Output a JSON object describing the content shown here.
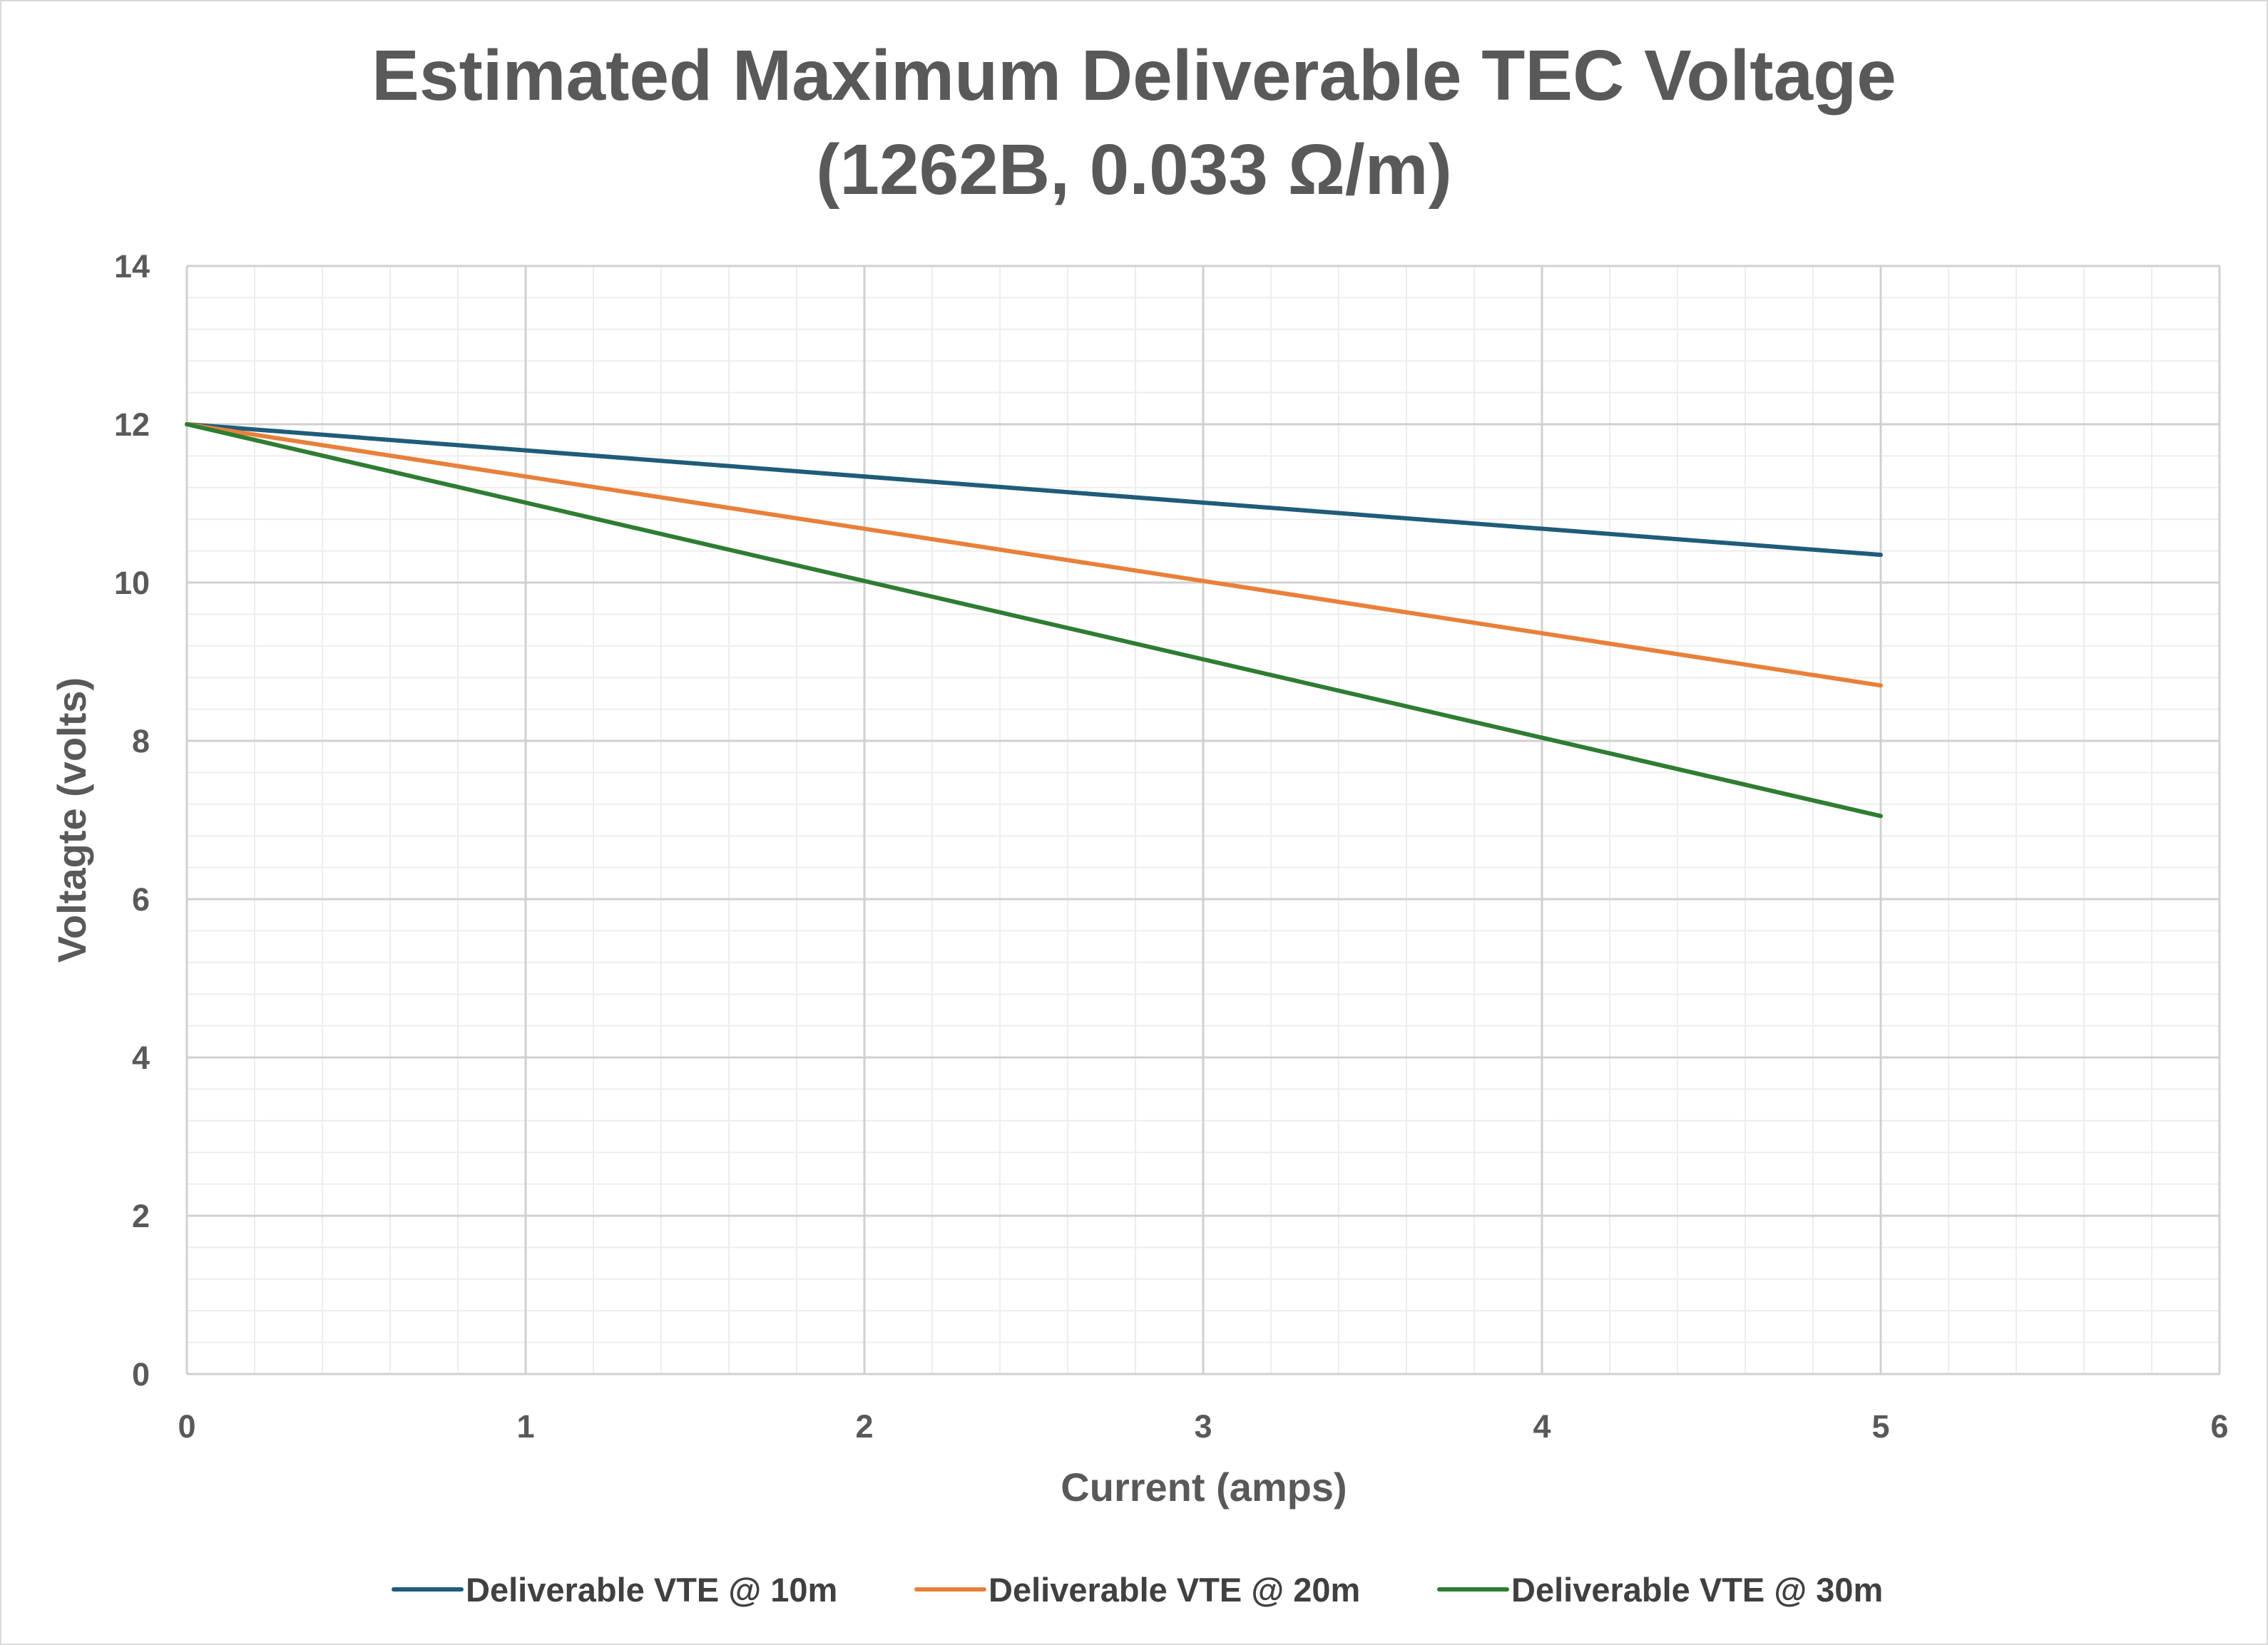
{
  "chart_data": {
    "type": "line",
    "title": "Estimated Maximum Deliverable TEC Voltage",
    "subtitle": "(1262B, 0.033 Ω/m)",
    "xlabel": "Current (amps)",
    "ylabel": "Voltagte (volts)",
    "xlim": [
      0,
      6
    ],
    "ylim": [
      0,
      14
    ],
    "x_ticks": [
      "0",
      "1",
      "2",
      "3",
      "4",
      "5",
      "6"
    ],
    "y_ticks": [
      "0",
      "2",
      "4",
      "6",
      "8",
      "10",
      "12",
      "14"
    ],
    "grid": true,
    "legend_position": "bottom",
    "series": [
      {
        "name": "Deliverable VTE @ 10m",
        "color": "#1f5c7a",
        "x": [
          0,
          5
        ],
        "y": [
          12,
          10.35
        ]
      },
      {
        "name": "Deliverable VTE @ 20m",
        "color": "#e8803a",
        "x": [
          0,
          5
        ],
        "y": [
          12,
          8.7
        ]
      },
      {
        "name": "Deliverable VTE @ 30m",
        "color": "#2e7d32",
        "x": [
          0,
          5
        ],
        "y": [
          12,
          7.05
        ]
      }
    ]
  }
}
